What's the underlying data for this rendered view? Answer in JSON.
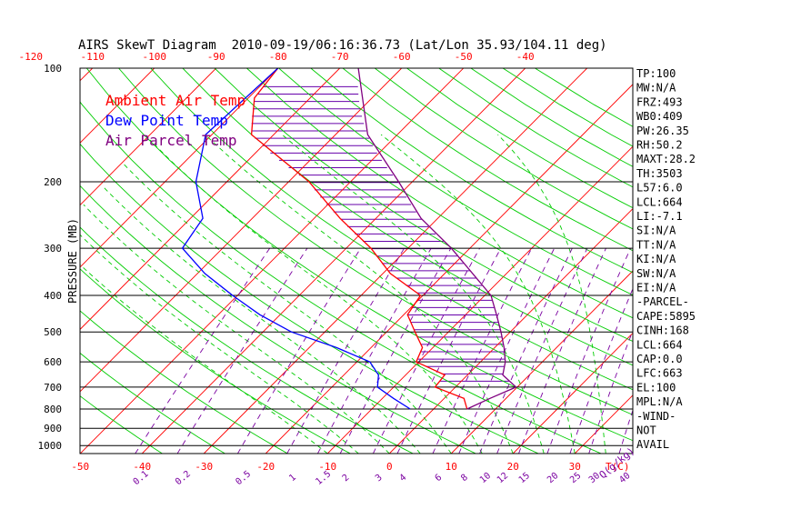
{
  "colors": {
    "ambient": "#ff0000",
    "dewpoint": "#0000ff",
    "parcel": "#800080",
    "isotherm": "#ff0000",
    "dry_adiabat": "#00cc00",
    "moist_adiabat": "#00cc00",
    "mixing_ratio": "#7a00a0",
    "hatch": "#6600aa",
    "text": "#000000"
  },
  "chart_data": {
    "type": "line",
    "title": "AIRS SkewT Diagram  2010-09-19/06:16:36.73 (Lat/Lon 35.93/104.11 deg)",
    "ylabel": "PRESSURE (MB)",
    "xlabel": "T(C)",
    "mixing_ratio_unit": "Q(g/kg)",
    "legend": [
      "Ambient Air Temp",
      "Dew Point Temp",
      "Air Parcel Temp"
    ],
    "pressure_levels": [
      100,
      200,
      300,
      400,
      500,
      600,
      700,
      800,
      900,
      1000
    ],
    "pressure_tick_labels": [
      "100",
      "200",
      "300",
      "400",
      "500",
      "600",
      "700",
      "800",
      "900",
      "1000"
    ],
    "top_temp_ticks": [
      -120,
      -110,
      -100,
      -90,
      -80,
      -70,
      -60,
      -50,
      -40
    ],
    "top_temp_labels": [
      "-120",
      "-110",
      "-100",
      "-90",
      "-80",
      "-70",
      "-60",
      "-50",
      "-40"
    ],
    "bottom_temp_ticks": [
      -50,
      -40,
      -30,
      -20,
      -10,
      0,
      10,
      20,
      30
    ],
    "bottom_temp_labels": [
      "-50",
      "-40",
      "-30",
      "-20",
      "-10",
      "0",
      "10",
      "20",
      "30"
    ],
    "mixing_ratio_values": [
      0.1,
      0.2,
      0.5,
      1,
      1.5,
      2,
      3,
      4,
      6,
      8,
      10,
      12,
      15,
      20,
      25,
      30,
      40
    ],
    "mixing_ratio_labels": [
      "0.1",
      "0.2",
      "0.5",
      "1",
      "1.5",
      "2",
      "3",
      "4",
      "6",
      "8",
      "10",
      "12",
      "15",
      "20",
      "25",
      "30",
      "40"
    ],
    "isotherms_c": [
      -160,
      -150,
      -140,
      -130,
      -120,
      -110,
      -100,
      -90,
      -80,
      -70,
      -60,
      -50,
      -40,
      -30,
      -20,
      -10,
      0,
      10,
      20,
      30,
      40,
      50
    ],
    "dry_adiabats_theta_c": [
      -40,
      -30,
      -20,
      -10,
      0,
      10,
      20,
      30,
      40,
      50,
      60,
      70,
      80,
      90,
      100,
      110,
      120,
      130,
      140,
      150,
      160,
      170,
      180
    ],
    "moist_adiabats_theta_c": [
      -10,
      -5,
      0,
      5,
      10,
      15,
      20,
      25,
      30,
      35
    ],
    "series": [
      {
        "name": "Ambient Air Temp",
        "pressure": [
          100,
          120,
          150,
          200,
          250,
          300,
          350,
          400,
          450,
          500,
          550,
          600,
          650,
          700,
          750,
          800
        ],
        "temperature": [
          -80,
          -79,
          -73.6,
          -56.7,
          -45.8,
          -36,
          -28.8,
          -20.4,
          -19.4,
          -15.4,
          -11.7,
          -10.4,
          -3.7,
          -3.3,
          3.2,
          5.4
        ]
      },
      {
        "name": "Dew Point Temp",
        "pressure": [
          100,
          150,
          200,
          250,
          300,
          350,
          400,
          450,
          500,
          550,
          600,
          650,
          700,
          750,
          800
        ],
        "temperature": [
          -80,
          -81,
          -75,
          -68,
          -66.5,
          -58.8,
          -50.8,
          -43.3,
          -35.4,
          -25.6,
          -17.9,
          -14.4,
          -12.6,
          -8.2,
          -3.8
        ]
      },
      {
        "name": "Air Parcel Temp",
        "pressure": [
          100,
          150,
          200,
          250,
          300,
          350,
          400,
          450,
          500,
          550,
          600,
          650,
          700,
          750,
          800
        ],
        "temperature": [
          -67,
          -54.8,
          -42.2,
          -32.7,
          -23,
          -15.5,
          -9,
          -5,
          -1.5,
          1.5,
          4,
          5.7,
          9.8,
          7.4,
          5.4
        ]
      }
    ],
    "index_labels": [
      "TP:100",
      "MW:N/A",
      "FRZ:493",
      "WB0:409",
      "PW:26.35",
      "RH:50.2",
      "MAXT:28.2",
      "TH:3503",
      "L57:6.0",
      "LCL:664",
      "LI:-7.1",
      "SI:N/A",
      "TT:N/A",
      "KI:N/A",
      "SW:N/A",
      "EI:N/A",
      "-PARCEL-",
      "CAPE:5895",
      "CINH:168",
      "LCL:664",
      "CAP:0.0",
      "LFC:663",
      "EL:100",
      "MPL:N/A",
      "-WIND-",
      "NOT",
      "AVAIL"
    ]
  }
}
